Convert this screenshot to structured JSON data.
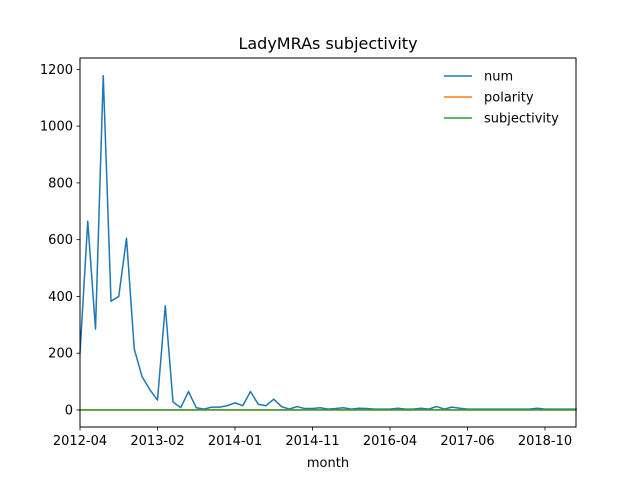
{
  "chart_data": {
    "type": "line",
    "title": "LadyMRAs subjectivity",
    "xlabel": "month",
    "ylabel": "",
    "x_tick_labels": [
      "2012-04",
      "2013-02",
      "2014-01",
      "2014-11",
      "2016-04",
      "2017-06",
      "2018-10"
    ],
    "x_tick_indices": [
      0,
      10,
      20,
      30,
      40,
      50,
      60
    ],
    "n_points": 65,
    "y_ticks": [
      0,
      200,
      400,
      600,
      800,
      1000,
      1200
    ],
    "ylim": [
      -60,
      1240
    ],
    "grid": false,
    "legend_position": "top-right",
    "series": [
      {
        "name": "num",
        "color": "#1f77b4",
        "values": [
          200,
          665,
          285,
          1178,
          383,
          400,
          605,
          215,
          118,
          72,
          35,
          367,
          28,
          8,
          65,
          8,
          3,
          10,
          10,
          15,
          25,
          15,
          65,
          20,
          15,
          38,
          12,
          3,
          12,
          5,
          5,
          8,
          3,
          5,
          8,
          3,
          6,
          5,
          3,
          3,
          3,
          6,
          3,
          3,
          6,
          3,
          12,
          3,
          10,
          6,
          3,
          3,
          3,
          3,
          3,
          3,
          3,
          3,
          3,
          6,
          3,
          3,
          3,
          3,
          3
        ]
      },
      {
        "name": "polarity",
        "color": "#ff7f0e",
        "values": [
          0.1,
          0.1,
          0.1,
          0.1,
          0.1,
          0.1,
          0.1,
          0.1,
          0.1,
          0.1,
          0.1,
          0.1,
          0.1,
          0.1,
          0.1,
          0.1,
          0.1,
          0.1,
          0.1,
          0.1,
          0.1,
          0.1,
          0.1,
          0.1,
          0.1,
          0.1,
          0.1,
          0.1,
          0.1,
          0.1,
          0.1,
          0.1,
          0.1,
          0.1,
          0.1,
          0.1,
          0.1,
          0.1,
          0.1,
          0.1,
          0.1,
          0.1,
          0.1,
          0.1,
          0.1,
          0.1,
          0.1,
          0.1,
          0.1,
          0.1,
          0.1,
          0.1,
          0.1,
          0.1,
          0.1,
          0.1,
          0.1,
          0.1,
          0.1,
          0.1,
          0.1,
          0.1,
          0.1,
          0.1,
          0.1
        ]
      },
      {
        "name": "subjectivity",
        "color": "#2ca02c",
        "values": [
          0.5,
          0.5,
          0.5,
          0.5,
          0.5,
          0.5,
          0.5,
          0.5,
          0.5,
          0.5,
          0.5,
          0.5,
          0.5,
          0.5,
          0.5,
          0.5,
          0.5,
          0.5,
          0.5,
          0.5,
          0.5,
          0.5,
          0.5,
          0.5,
          0.5,
          0.5,
          0.5,
          0.5,
          0.5,
          0.5,
          0.5,
          0.5,
          0.5,
          0.5,
          0.5,
          0.5,
          0.5,
          0.5,
          0.5,
          0.5,
          0.5,
          0.5,
          0.5,
          0.5,
          0.5,
          0.5,
          0.5,
          0.5,
          0.5,
          0.5,
          0.5,
          0.5,
          0.5,
          0.5,
          0.5,
          0.5,
          0.5,
          0.5,
          0.5,
          0.5,
          0.5,
          0.5,
          0.5,
          0.5,
          0.5
        ]
      }
    ]
  }
}
